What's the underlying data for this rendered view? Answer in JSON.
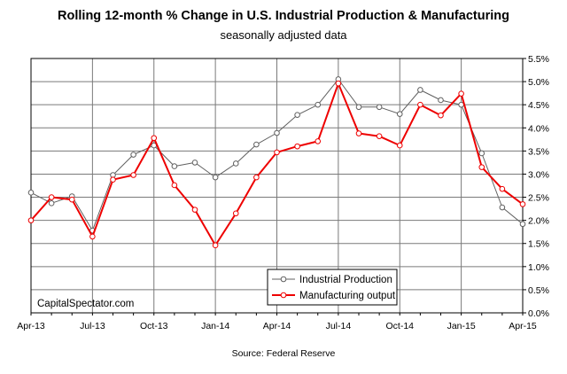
{
  "chart_data": {
    "type": "line",
    "title": "Rolling 12-month % Change in U.S. Industrial Production & Manufacturing",
    "subtitle": "seasonally adjusted data",
    "source": "Source: Federal Reserve",
    "watermark": "CapitalSpectator.com",
    "x": [
      "Apr-13",
      "May-13",
      "Jun-13",
      "Jul-13",
      "Aug-13",
      "Sep-13",
      "Oct-13",
      "Nov-13",
      "Dec-13",
      "Jan-14",
      "Feb-14",
      "Mar-14",
      "Apr-14",
      "May-14",
      "Jun-14",
      "Jul-14",
      "Aug-14",
      "Sep-14",
      "Oct-14",
      "Nov-14",
      "Dec-14",
      "Jan-15",
      "Feb-15",
      "Mar-15",
      "Apr-15"
    ],
    "x_tick_labels": [
      "Apr-13",
      "Jul-13",
      "Oct-13",
      "Jan-14",
      "Apr-14",
      "Jul-14",
      "Oct-14",
      "Jan-15",
      "Apr-15"
    ],
    "y_tick_labels": [
      "0.0%",
      "0.5%",
      "1.0%",
      "1.5%",
      "2.0%",
      "2.5%",
      "3.0%",
      "3.5%",
      "4.0%",
      "4.5%",
      "5.0%",
      "5.5%"
    ],
    "ylim": [
      0,
      5.5
    ],
    "y_axis_position": "right",
    "grid": true,
    "legend_position": "bottom-center",
    "series": [
      {
        "name": "Industrial Production",
        "color": "#606060",
        "values": [
          2.6,
          2.37,
          2.52,
          1.78,
          2.98,
          3.42,
          3.62,
          3.17,
          3.25,
          2.93,
          3.23,
          3.64,
          3.89,
          4.28,
          4.5,
          5.05,
          4.45,
          4.45,
          4.3,
          4.82,
          4.6,
          4.5,
          3.45,
          2.28,
          1.92
        ]
      },
      {
        "name": "Manufacturing output",
        "color": "#ee0000",
        "values": [
          2.0,
          2.5,
          2.45,
          1.65,
          2.88,
          2.98,
          3.78,
          2.76,
          2.23,
          1.46,
          2.15,
          2.93,
          3.47,
          3.6,
          3.71,
          4.96,
          3.88,
          3.82,
          3.62,
          4.5,
          4.27,
          4.74,
          3.15,
          2.68,
          2.35
        ]
      }
    ]
  }
}
